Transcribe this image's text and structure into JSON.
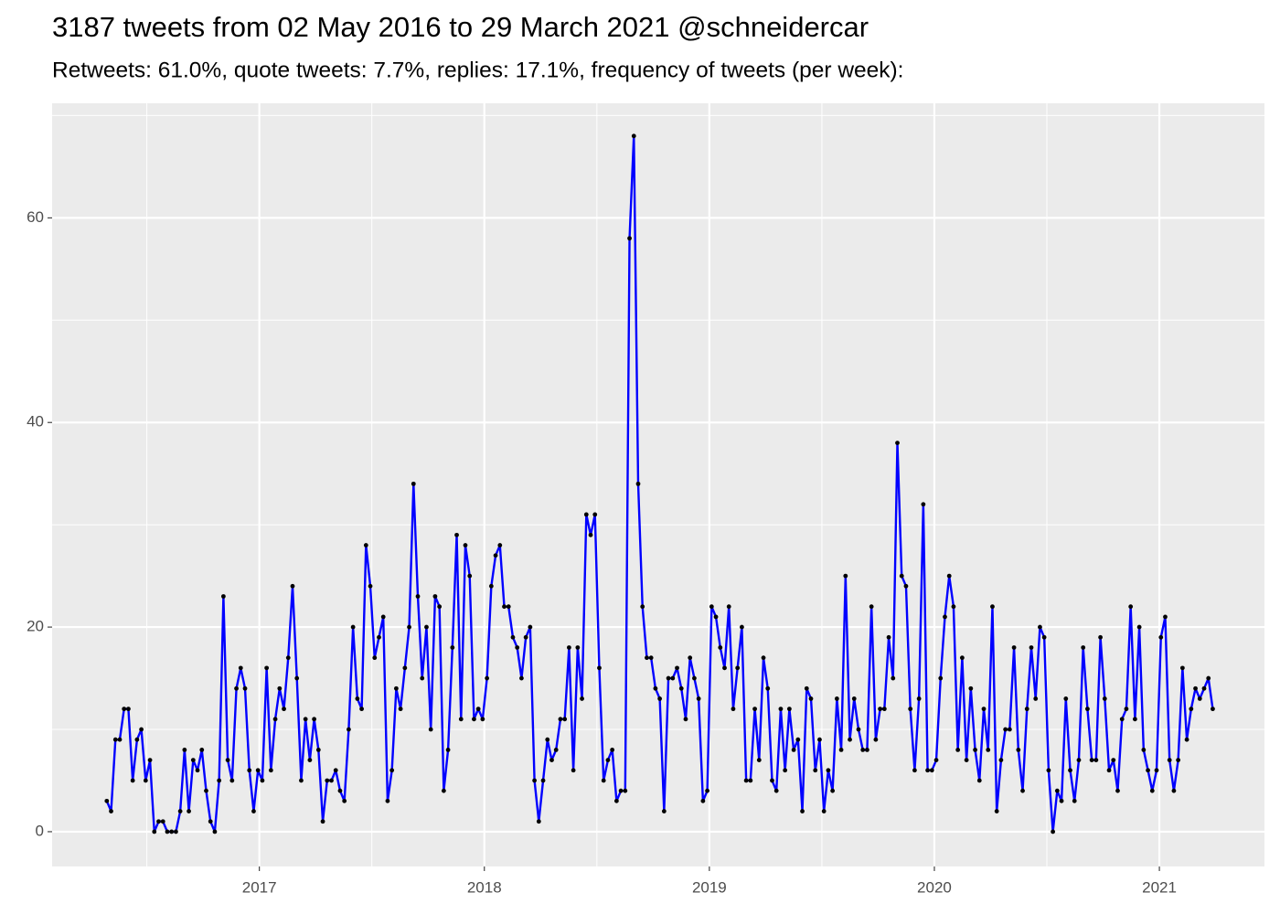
{
  "chart_data": {
    "type": "line",
    "title": "3187 tweets from 02 May 2016 to 29 March 2021 @schneidercar",
    "subtitle": "Retweets: 61.0%, quote tweets: 7.7%, replies: 17.1%, frequency of tweets (per week):",
    "color": "#0000ff",
    "point_color": "#000000",
    "grid": true,
    "xlim": [
      2016.079,
      2021.467
    ],
    "xticks": [
      2017,
      2018,
      2019,
      2020,
      2021
    ],
    "ylim": [
      -3.4,
      71.2
    ],
    "yticks": [
      0,
      20,
      40,
      60
    ],
    "x": [
      2016.322,
      2016.3412,
      2016.3604,
      2016.3796,
      2016.3988,
      2016.418,
      2016.4372,
      2016.4564,
      2016.4756,
      2016.4948,
      2016.514,
      2016.5332,
      2016.5524,
      2016.5716,
      2016.5908,
      2016.61,
      2016.6292,
      2016.6484,
      2016.6676,
      2016.6868,
      2016.706,
      2016.7252,
      2016.7444,
      2016.7636,
      2016.7828,
      2016.802,
      2016.8212,
      2016.8404,
      2016.8596,
      2016.8788,
      2016.898,
      2016.9172,
      2016.9364,
      2016.9556,
      2016.9748,
      2016.994,
      2017.0132,
      2017.0324,
      2017.0516,
      2017.0708,
      2017.09,
      2017.1092,
      2017.1284,
      2017.1476,
      2017.1668,
      2017.186,
      2017.2052,
      2017.2244,
      2017.2436,
      2017.2628,
      2017.282,
      2017.3012,
      2017.3204,
      2017.3396,
      2017.3588,
      2017.378,
      2017.3972,
      2017.4164,
      2017.4356,
      2017.4548,
      2017.474,
      2017.4932,
      2017.5124,
      2017.5316,
      2017.5508,
      2017.57,
      2017.5892,
      2017.6084,
      2017.6276,
      2017.6468,
      2017.666,
      2017.6852,
      2017.7044,
      2017.7236,
      2017.7428,
      2017.762,
      2017.7812,
      2017.8004,
      2017.8196,
      2017.8388,
      2017.858,
      2017.8772,
      2017.8964,
      2017.9156,
      2017.9348,
      2017.954,
      2017.9732,
      2017.9924,
      2018.0116,
      2018.0308,
      2018.05,
      2018.0692,
      2018.0884,
      2018.1076,
      2018.1268,
      2018.146,
      2018.1652,
      2018.1844,
      2018.2036,
      2018.2228,
      2018.242,
      2018.2612,
      2018.2804,
      2018.2996,
      2018.3188,
      2018.338,
      2018.3572,
      2018.3764,
      2018.3956,
      2018.4148,
      2018.434,
      2018.4532,
      2018.4724,
      2018.4916,
      2018.5108,
      2018.53,
      2018.5492,
      2018.5684,
      2018.5876,
      2018.6068,
      2018.626,
      2018.6452,
      2018.6644,
      2018.6836,
      2018.7028,
      2018.722,
      2018.7412,
      2018.7604,
      2018.7796,
      2018.7988,
      2018.818,
      2018.8372,
      2018.8564,
      2018.8756,
      2018.8948,
      2018.914,
      2018.9332,
      2018.9524,
      2018.9716,
      2018.9908,
      2019.01,
      2019.0292,
      2019.0484,
      2019.0676,
      2019.0868,
      2019.106,
      2019.1252,
      2019.1444,
      2019.1636,
      2019.1828,
      2019.202,
      2019.2212,
      2019.2404,
      2019.2596,
      2019.2788,
      2019.298,
      2019.3172,
      2019.3364,
      2019.3556,
      2019.3748,
      2019.394,
      2019.4132,
      2019.4324,
      2019.4516,
      2019.4708,
      2019.49,
      2019.5092,
      2019.5284,
      2019.5476,
      2019.5668,
      2019.586,
      2019.6052,
      2019.6244,
      2019.6436,
      2019.6628,
      2019.682,
      2019.7012,
      2019.7204,
      2019.7396,
      2019.7588,
      2019.778,
      2019.7972,
      2019.8164,
      2019.8356,
      2019.8548,
      2019.874,
      2019.8932,
      2019.9124,
      2019.9316,
      2019.9508,
      2019.97,
      2019.9892,
      2020.0084,
      2020.0276,
      2020.0468,
      2020.066,
      2020.0852,
      2020.1044,
      2020.1236,
      2020.1428,
      2020.162,
      2020.1812,
      2020.2004,
      2020.2196,
      2020.2388,
      2020.258,
      2020.2772,
      2020.2964,
      2020.3156,
      2020.3348,
      2020.354,
      2020.3732,
      2020.3924,
      2020.4116,
      2020.4308,
      2020.45,
      2020.4692,
      2020.4884,
      2020.5076,
      2020.5268,
      2020.546,
      2020.5652,
      2020.5844,
      2020.6036,
      2020.6228,
      2020.642,
      2020.6612,
      2020.6804,
      2020.6996,
      2020.7188,
      2020.738,
      2020.7572,
      2020.7764,
      2020.7956,
      2020.8148,
      2020.834,
      2020.8532,
      2020.8724,
      2020.8916,
      2020.9108,
      2020.93,
      2020.9492,
      2020.9684,
      2020.9876,
      2021.0068,
      2021.026,
      2021.0452,
      2021.0644,
      2021.0836,
      2021.1028,
      2021.122,
      2021.1412,
      2021.1604,
      2021.1796,
      2021.1988,
      2021.218,
      2021.2372
    ],
    "values": [
      3,
      2,
      9,
      9,
      12,
      12,
      5,
      9,
      10,
      5,
      7,
      0,
      1,
      1,
      0,
      0,
      0,
      2,
      8,
      2,
      7,
      6,
      8,
      4,
      1,
      0,
      5,
      23,
      7,
      5,
      14,
      16,
      14,
      6,
      2,
      6,
      5,
      16,
      6,
      11,
      14,
      12,
      17,
      24,
      15,
      5,
      11,
      7,
      11,
      8,
      1,
      5,
      5,
      6,
      4,
      3,
      10,
      20,
      13,
      12,
      28,
      24,
      17,
      19,
      21,
      3,
      6,
      14,
      12,
      16,
      20,
      34,
      23,
      15,
      20,
      10,
      23,
      22,
      4,
      8,
      18,
      29,
      11,
      28,
      25,
      11,
      12,
      11,
      15,
      24,
      27,
      28,
      22,
      22,
      19,
      18,
      15,
      19,
      20,
      5,
      1,
      5,
      9,
      7,
      8,
      11,
      11,
      18,
      6,
      18,
      13,
      31,
      29,
      31,
      16,
      5,
      7,
      8,
      3,
      4,
      4,
      58,
      68,
      34,
      22,
      17,
      17,
      14,
      13,
      2,
      15,
      15,
      16,
      14,
      11,
      17,
      15,
      13,
      3,
      4,
      22,
      21,
      18,
      16,
      22,
      12,
      16,
      20,
      5,
      5,
      12,
      7,
      17,
      14,
      5,
      4,
      12,
      6,
      12,
      8,
      9,
      2,
      14,
      13,
      6,
      9,
      2,
      6,
      4,
      13,
      8,
      25,
      9,
      13,
      10,
      8,
      8,
      22,
      9,
      12,
      12,
      19,
      15,
      38,
      25,
      24,
      12,
      6,
      13,
      32,
      6,
      6,
      7,
      15,
      21,
      25,
      22,
      8,
      17,
      7,
      14,
      8,
      5,
      12,
      8,
      22,
      2,
      7,
      10,
      10,
      18,
      8,
      4,
      12,
      18,
      13,
      20,
      19,
      6,
      0,
      4,
      3,
      13,
      6,
      3,
      7,
      18,
      12,
      7,
      7,
      19,
      13,
      6,
      7,
      4,
      11,
      12,
      22,
      11,
      20,
      8,
      6,
      4,
      6,
      19,
      21,
      7,
      4,
      7,
      16,
      9,
      12,
      14,
      13,
      14,
      15,
      12
    ]
  }
}
